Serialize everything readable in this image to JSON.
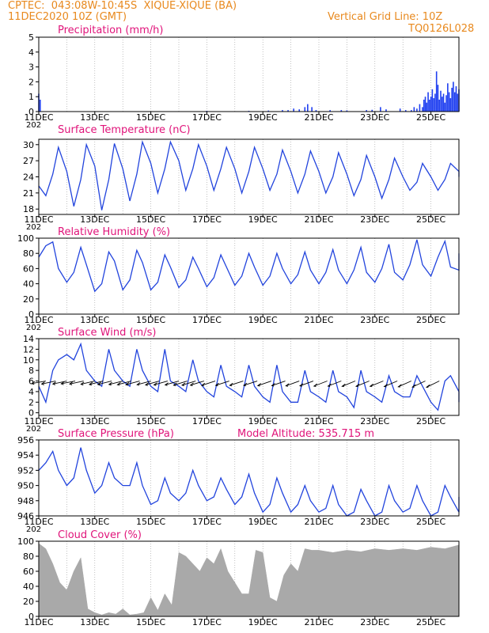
{
  "header": {
    "line1_left": "CPTEC:  043:08W-10:45S  XIQUE-XIQUE (BA)",
    "line2_left": "11DEC2020 10Z (GMT)",
    "line1_right": "Vertical Grid Line: 10Z",
    "line2_right": "TQ0126L028"
  },
  "colors": {
    "header": "#e8891e",
    "title": "#e0147a",
    "series": "#2244dd",
    "bars": "#1f3ff0",
    "cloud": "#a9a9a9",
    "frame": "#000000"
  },
  "x_axis": {
    "labels": [
      "11DEC",
      "13DEC",
      "15DEC",
      "17DEC",
      "19DEC",
      "21DEC",
      "23DEC",
      "25DEC"
    ],
    "cut_year_label": "202"
  },
  "chart_data": [
    {
      "type": "bar",
      "title": "Precipitation (mm/h)",
      "ylim": [
        0,
        5
      ],
      "yticks": [
        "0",
        "1",
        "2",
        "3",
        "4",
        "5"
      ],
      "x_range_days": [
        0,
        15
      ],
      "bars": [
        [
          0.0,
          1.2
        ],
        [
          0.05,
          0.8
        ],
        [
          6.0,
          0.05
        ],
        [
          7.5,
          0.05
        ],
        [
          8.2,
          0.07
        ],
        [
          8.7,
          0.1
        ],
        [
          8.9,
          0.1
        ],
        [
          9.1,
          0.2
        ],
        [
          9.3,
          0.15
        ],
        [
          9.5,
          0.3
        ],
        [
          9.6,
          0.5
        ],
        [
          9.75,
          0.3
        ],
        [
          9.9,
          0.1
        ],
        [
          10.4,
          0.1
        ],
        [
          10.8,
          0.1
        ],
        [
          11.0,
          0.08
        ],
        [
          11.7,
          0.1
        ],
        [
          11.9,
          0.12
        ],
        [
          12.2,
          0.3
        ],
        [
          12.4,
          0.15
        ],
        [
          12.9,
          0.2
        ],
        [
          13.1,
          0.1
        ],
        [
          13.3,
          0.1
        ],
        [
          13.4,
          0.3
        ],
        [
          13.5,
          0.2
        ],
        [
          13.6,
          0.5
        ],
        [
          13.7,
          0.3
        ],
        [
          13.75,
          0.8
        ],
        [
          13.8,
          1.0
        ],
        [
          13.85,
          0.6
        ],
        [
          13.9,
          1.3
        ],
        [
          13.95,
          0.8
        ],
        [
          14.0,
          1.0
        ],
        [
          14.05,
          1.5
        ],
        [
          14.1,
          0.9
        ],
        [
          14.15,
          1.2
        ],
        [
          14.2,
          2.7
        ],
        [
          14.25,
          1.8
        ],
        [
          14.3,
          0.8
        ],
        [
          14.35,
          1.4
        ],
        [
          14.4,
          1.0
        ],
        [
          14.45,
          1.2
        ],
        [
          14.5,
          0.6
        ],
        [
          14.55,
          1.1
        ],
        [
          14.6,
          1.9
        ],
        [
          14.65,
          1.3
        ],
        [
          14.7,
          0.9
        ],
        [
          14.75,
          1.6
        ],
        [
          14.8,
          2.0
        ],
        [
          14.85,
          1.3
        ],
        [
          14.9,
          1.7
        ],
        [
          14.95,
          1.2
        ],
        [
          15.0,
          1.5
        ],
        [
          15.05,
          1.1
        ],
        [
          15.1,
          1.3
        ],
        [
          15.15,
          1.0
        ],
        [
          15.2,
          1.5
        ]
      ]
    },
    {
      "type": "line",
      "title": "Surface Temperature (nC)",
      "ylim": [
        17,
        31
      ],
      "yticks": [
        "18",
        "21",
        "24",
        "27",
        "30"
      ],
      "x": [
        0,
        0.25,
        0.5,
        0.7,
        1.0,
        1.25,
        1.5,
        1.7,
        2.0,
        2.25,
        2.5,
        2.7,
        3.0,
        3.25,
        3.5,
        3.7,
        4.0,
        4.25,
        4.5,
        4.7,
        5.0,
        5.25,
        5.5,
        5.7,
        6.0,
        6.25,
        6.5,
        6.7,
        7.0,
        7.25,
        7.5,
        7.7,
        8.0,
        8.25,
        8.5,
        8.7,
        9.0,
        9.25,
        9.5,
        9.7,
        10.0,
        10.25,
        10.5,
        10.7,
        11.0,
        11.25,
        11.5,
        11.7,
        12.0,
        12.25,
        12.5,
        12.7,
        13.0,
        13.25,
        13.5,
        13.7,
        14.0,
        14.25,
        14.5,
        14.7,
        15.0,
        15.2
      ],
      "values": [
        22.3,
        20.5,
        24.5,
        29.5,
        25.0,
        18.5,
        23.5,
        30.0,
        26.0,
        17.8,
        23.5,
        30.2,
        25.5,
        19.5,
        24.5,
        30.5,
        26.5,
        21.0,
        25.5,
        30.5,
        27.0,
        21.5,
        25.5,
        30.0,
        26.0,
        21.5,
        25.5,
        29.5,
        25.5,
        21.0,
        25.0,
        29.5,
        25.5,
        21.5,
        24.5,
        29.0,
        25.0,
        21.0,
        24.5,
        28.8,
        25.0,
        21.0,
        24.0,
        28.5,
        24.5,
        20.5,
        23.5,
        28.0,
        24.0,
        20.0,
        23.5,
        27.5,
        24.0,
        21.5,
        23.0,
        26.5,
        24.0,
        21.5,
        23.5,
        26.5,
        25.0,
        24.0
      ]
    },
    {
      "type": "line",
      "title": "Relative Humidity (%)",
      "ylim": [
        0,
        100
      ],
      "yticks": [
        "0",
        "20",
        "40",
        "60",
        "80",
        "100"
      ],
      "x": [
        0,
        0.25,
        0.5,
        0.7,
        1.0,
        1.25,
        1.5,
        1.7,
        2.0,
        2.25,
        2.5,
        2.7,
        3.0,
        3.25,
        3.5,
        3.7,
        4.0,
        4.25,
        4.5,
        4.7,
        5.0,
        5.25,
        5.5,
        5.7,
        6.0,
        6.25,
        6.5,
        6.7,
        7.0,
        7.25,
        7.5,
        7.7,
        8.0,
        8.25,
        8.5,
        8.7,
        9.0,
        9.25,
        9.5,
        9.7,
        10.0,
        10.25,
        10.5,
        10.7,
        11.0,
        11.25,
        11.5,
        11.7,
        12.0,
        12.25,
        12.5,
        12.7,
        13.0,
        13.25,
        13.5,
        13.7,
        14.0,
        14.25,
        14.5,
        14.7,
        15.0,
        15.2
      ],
      "values": [
        75,
        90,
        95,
        60,
        42,
        55,
        88,
        65,
        30,
        40,
        82,
        70,
        32,
        45,
        84,
        68,
        32,
        42,
        78,
        62,
        35,
        45,
        75,
        60,
        36,
        48,
        78,
        62,
        38,
        50,
        80,
        62,
        38,
        50,
        80,
        60,
        40,
        52,
        82,
        58,
        40,
        55,
        85,
        58,
        40,
        58,
        88,
        55,
        42,
        60,
        92,
        55,
        45,
        65,
        98,
        65,
        50,
        75,
        96,
        62,
        58,
        80
      ]
    },
    {
      "type": "line",
      "title": "Surface Wind (m/s)",
      "ylim": [
        -0.5,
        14
      ],
      "yticks": [
        "0",
        "2",
        "4",
        "6",
        "8",
        "10",
        "12",
        "14"
      ],
      "x": [
        0,
        0.25,
        0.5,
        0.7,
        1.0,
        1.25,
        1.5,
        1.7,
        2.0,
        2.25,
        2.5,
        2.7,
        3.0,
        3.25,
        3.5,
        3.7,
        4.0,
        4.25,
        4.5,
        4.7,
        5.0,
        5.25,
        5.5,
        5.7,
        6.0,
        6.25,
        6.5,
        6.7,
        7.0,
        7.25,
        7.5,
        7.7,
        8.0,
        8.25,
        8.5,
        8.7,
        9.0,
        9.25,
        9.5,
        9.7,
        10.0,
        10.25,
        10.5,
        10.7,
        11.0,
        11.25,
        11.5,
        11.7,
        12.0,
        12.25,
        12.5,
        12.7,
        13.0,
        13.25,
        13.5,
        13.7,
        14.0,
        14.25,
        14.5,
        14.7,
        15.0,
        15.2
      ],
      "values": [
        5,
        2,
        8,
        10,
        11,
        10,
        13,
        8,
        6,
        5,
        12,
        8,
        6,
        5,
        12,
        8,
        5,
        4,
        12,
        6,
        5,
        4,
        10,
        6,
        4,
        3,
        9,
        5,
        4,
        3,
        9,
        5,
        3,
        2,
        9,
        4,
        2,
        2,
        8,
        4,
        3,
        2,
        8,
        4,
        3,
        1,
        8,
        4,
        3,
        2,
        7,
        4,
        3,
        3,
        7,
        5,
        2,
        0.5,
        6,
        7,
        4,
        2
      ],
      "arrows": [
        [
          0.25,
          6.0,
          -0.5
        ],
        [
          0.6,
          6.0,
          -0.6
        ],
        [
          1.0,
          6.0,
          -0.6
        ],
        [
          1.3,
          6.0,
          -0.55
        ],
        [
          1.6,
          6.0,
          -0.6
        ],
        [
          2.0,
          6.0,
          -0.65
        ],
        [
          2.3,
          6.0,
          -0.7
        ],
        [
          2.6,
          6.0,
          -0.7
        ],
        [
          3.0,
          6.0,
          -0.7
        ],
        [
          3.3,
          6.0,
          -0.75
        ],
        [
          3.6,
          6.0,
          -0.75
        ],
        [
          4.0,
          6.0,
          -0.75
        ],
        [
          4.3,
          6.0,
          -0.8
        ],
        [
          4.6,
          6.0,
          -0.8
        ],
        [
          5.0,
          6.0,
          -0.8
        ],
        [
          5.3,
          6.0,
          -0.85
        ],
        [
          5.6,
          6.0,
          -0.85
        ],
        [
          5.9,
          6.0,
          -0.85
        ],
        [
          6.3,
          6.0,
          -0.9
        ],
        [
          6.8,
          6.0,
          -0.9
        ],
        [
          7.3,
          6.0,
          -0.9
        ],
        [
          7.8,
          6.0,
          -0.9
        ],
        [
          8.3,
          6.0,
          -0.95
        ],
        [
          8.8,
          6.0,
          -0.95
        ],
        [
          9.3,
          6.0,
          -1.0
        ],
        [
          9.8,
          6.0,
          -1.0
        ],
        [
          10.3,
          6.0,
          -1.05
        ],
        [
          10.8,
          6.0,
          -1.05
        ],
        [
          11.3,
          6.0,
          -1.1
        ],
        [
          11.8,
          6.0,
          -1.1
        ],
        [
          12.3,
          6.0,
          -1.1
        ],
        [
          12.8,
          6.0,
          -1.15
        ],
        [
          13.3,
          6.0,
          -1.2
        ],
        [
          13.8,
          6.0,
          -1.25
        ],
        [
          14.3,
          6.0,
          -1.3
        ],
        [
          15.1,
          6.0,
          -1.35
        ]
      ]
    },
    {
      "type": "line",
      "title": "Surface Pressure (hPa)",
      "annotation": "Model Altitude: 535.715  m",
      "ylim": [
        946,
        956
      ],
      "yticks": [
        "946",
        "948",
        "950",
        "952",
        "954",
        "956"
      ],
      "x": [
        0,
        0.25,
        0.5,
        0.7,
        1.0,
        1.25,
        1.5,
        1.7,
        2.0,
        2.25,
        2.5,
        2.7,
        3.0,
        3.25,
        3.5,
        3.7,
        4.0,
        4.25,
        4.5,
        4.7,
        5.0,
        5.25,
        5.5,
        5.7,
        6.0,
        6.25,
        6.5,
        6.7,
        7.0,
        7.25,
        7.5,
        7.7,
        8.0,
        8.25,
        8.5,
        8.7,
        9.0,
        9.25,
        9.5,
        9.7,
        10.0,
        10.25,
        10.5,
        10.7,
        11.0,
        11.25,
        11.5,
        11.7,
        12.0,
        12.25,
        12.5,
        12.7,
        13.0,
        13.25,
        13.5,
        13.7,
        14.0,
        14.25,
        14.5,
        14.7,
        15.0,
        15.2
      ],
      "values": [
        952,
        953,
        954.5,
        952,
        950,
        951,
        955,
        952,
        949,
        950,
        953,
        951,
        950,
        950,
        953,
        950,
        947.5,
        948,
        951,
        949,
        948,
        949,
        952,
        950,
        948,
        948.5,
        951,
        949.5,
        947.5,
        948.5,
        951.5,
        949,
        946.5,
        947.5,
        951,
        949,
        946.5,
        947.5,
        950,
        948,
        946.5,
        947,
        950,
        947.5,
        946,
        946.5,
        949.5,
        948,
        946,
        946.5,
        950,
        948,
        946.5,
        947,
        950,
        948,
        946,
        946.5,
        950,
        948.5,
        946.5,
        948.5
      ]
    },
    {
      "type": "area",
      "title": "Cloud Cover (%)",
      "ylim": [
        0,
        100
      ],
      "yticks": [
        "0",
        "20",
        "40",
        "60",
        "80",
        "100"
      ],
      "x": [
        0,
        0.25,
        0.5,
        0.75,
        1.0,
        1.25,
        1.5,
        1.75,
        2.0,
        2.25,
        2.5,
        2.75,
        3.0,
        3.25,
        3.5,
        3.75,
        4.0,
        4.25,
        4.5,
        4.75,
        5.0,
        5.25,
        5.5,
        5.75,
        6.0,
        6.25,
        6.5,
        6.75,
        7.0,
        7.25,
        7.5,
        7.75,
        8.0,
        8.25,
        8.5,
        8.75,
        9.0,
        9.25,
        9.5,
        9.75,
        10.0,
        10.5,
        11.0,
        11.5,
        12.0,
        12.5,
        13.0,
        13.5,
        14.0,
        14.5,
        15.0,
        15.2
      ],
      "values": [
        97,
        90,
        70,
        45,
        35,
        60,
        78,
        10,
        5,
        2,
        5,
        3,
        10,
        2,
        3,
        5,
        25,
        8,
        30,
        15,
        85,
        80,
        70,
        60,
        78,
        70,
        90,
        60,
        45,
        30,
        30,
        88,
        85,
        25,
        20,
        55,
        70,
        60,
        90,
        88,
        88,
        85,
        88,
        86,
        90,
        88,
        90,
        88,
        92,
        90,
        95,
        97
      ]
    }
  ]
}
